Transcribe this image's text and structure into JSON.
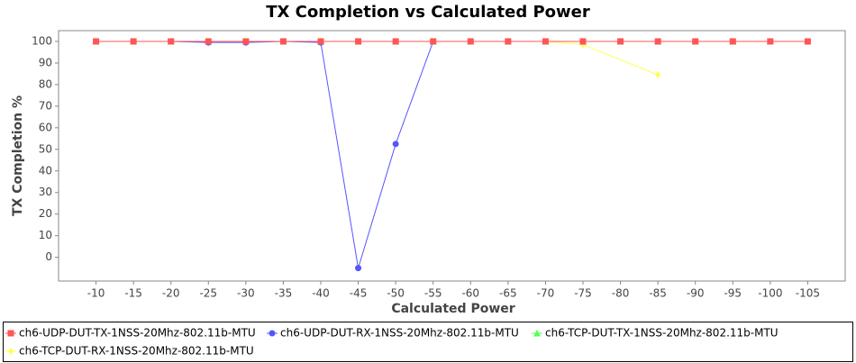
{
  "chart_data": {
    "type": "line",
    "title": "TX Completion vs Calculated Power",
    "x_label": "Calculated Power",
    "y_label": "TX Completion %",
    "xlim": [
      -5,
      -110
    ],
    "xticks": [
      -10,
      -15,
      -20,
      -25,
      -30,
      -35,
      -40,
      -45,
      -50,
      -55,
      -60,
      -65,
      -70,
      -75,
      -80,
      -85,
      -90,
      -95,
      -100,
      -105
    ],
    "ylim": [
      -11,
      105
    ],
    "yticks": [
      0,
      10,
      20,
      30,
      40,
      50,
      60,
      70,
      80,
      90,
      100
    ],
    "series": [
      {
        "name": "ch6-UDP-DUT-TX-1NSS-20Mhz-802.11b-MTU",
        "color": "#ff5555",
        "marker": "square",
        "x": [
          -10,
          -15,
          -20,
          -25,
          -30,
          -35,
          -40,
          -45,
          -50,
          -55,
          -60,
          -65,
          -70,
          -75,
          -80,
          -85,
          -90,
          -95,
          -100,
          -105
        ],
        "values": [
          100,
          100,
          100,
          100,
          100,
          100,
          100,
          100,
          100,
          100,
          100,
          100,
          100,
          100,
          100,
          100,
          100,
          100,
          100,
          100
        ]
      },
      {
        "name": "ch6-UDP-DUT-RX-1NSS-20Mhz-802.11b-MTU",
        "color": "#5555ff",
        "marker": "circle",
        "x": [
          -10,
          -15,
          -20,
          -25,
          -30,
          -35,
          -40,
          -45,
          -50,
          -55,
          -60,
          -65,
          -70,
          -75,
          -80,
          -85,
          -90,
          -95,
          -100,
          -105
        ],
        "values": [
          100,
          100,
          100,
          99.5,
          99.5,
          100,
          99.5,
          -5,
          52.5,
          100,
          100,
          100,
          100,
          100,
          100,
          100,
          100,
          100,
          100,
          100
        ]
      },
      {
        "name": "ch6-TCP-DUT-TX-1NSS-20Mhz-802.11b-MTU",
        "color": "#55ff55",
        "marker": "triangle",
        "x": [
          -10,
          -15,
          -20,
          -25,
          -30,
          -35,
          -40,
          -45,
          -50,
          -55,
          -60,
          -65,
          -70,
          -75,
          -80,
          -85,
          -90,
          -95,
          -100,
          -105
        ],
        "values": [
          100,
          100,
          100,
          100,
          100,
          100,
          100,
          100,
          100,
          100,
          100,
          100,
          100,
          100,
          100,
          100,
          100,
          100,
          100,
          100
        ]
      },
      {
        "name": "ch6-TCP-DUT-RX-1NSS-20Mhz-802.11b-MTU",
        "color": "#ffff55",
        "marker": "diamond",
        "x": [
          -10,
          -15,
          -20,
          -25,
          -30,
          -35,
          -40,
          -45,
          -50,
          -55,
          -60,
          -65,
          -70,
          -75,
          -85
        ],
        "values": [
          100,
          100,
          100,
          100,
          100,
          100,
          100,
          100,
          100,
          100,
          100,
          100,
          100,
          98.5,
          84.5
        ]
      }
    ]
  }
}
